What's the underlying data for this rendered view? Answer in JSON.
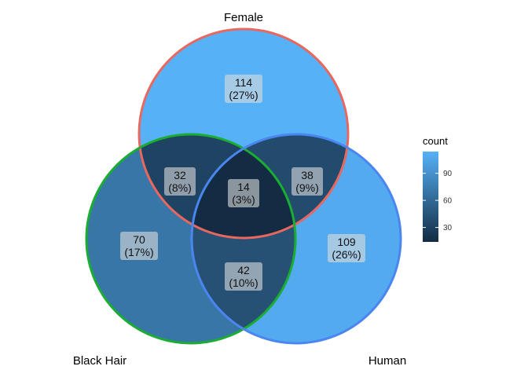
{
  "chart_data": {
    "type": "venn",
    "title": "",
    "sets": [
      {
        "name": "Female",
        "border_color": "#e8675e"
      },
      {
        "name": "Black Hair",
        "border_color": "#1aad32"
      },
      {
        "name": "Human",
        "border_color": "#4a86f0"
      }
    ],
    "regions": [
      {
        "sets": [
          "Female"
        ],
        "count": 114,
        "percent": "27%"
      },
      {
        "sets": [
          "Black Hair"
        ],
        "count": 70,
        "percent": "17%"
      },
      {
        "sets": [
          "Human"
        ],
        "count": 109,
        "percent": "26%"
      },
      {
        "sets": [
          "Female",
          "Black Hair"
        ],
        "count": 32,
        "percent": "8%"
      },
      {
        "sets": [
          "Female",
          "Human"
        ],
        "count": 38,
        "percent": "9%"
      },
      {
        "sets": [
          "Black Hair",
          "Human"
        ],
        "count": 42,
        "percent": "10%"
      },
      {
        "sets": [
          "Female",
          "Black Hair",
          "Human"
        ],
        "count": 14,
        "percent": "3%"
      }
    ],
    "legend": {
      "title": "count",
      "ticks": [
        30,
        60,
        90
      ],
      "range": [
        14,
        114
      ],
      "low_color": "#132b43",
      "high_color": "#56b1f7",
      "placement": "right"
    }
  }
}
